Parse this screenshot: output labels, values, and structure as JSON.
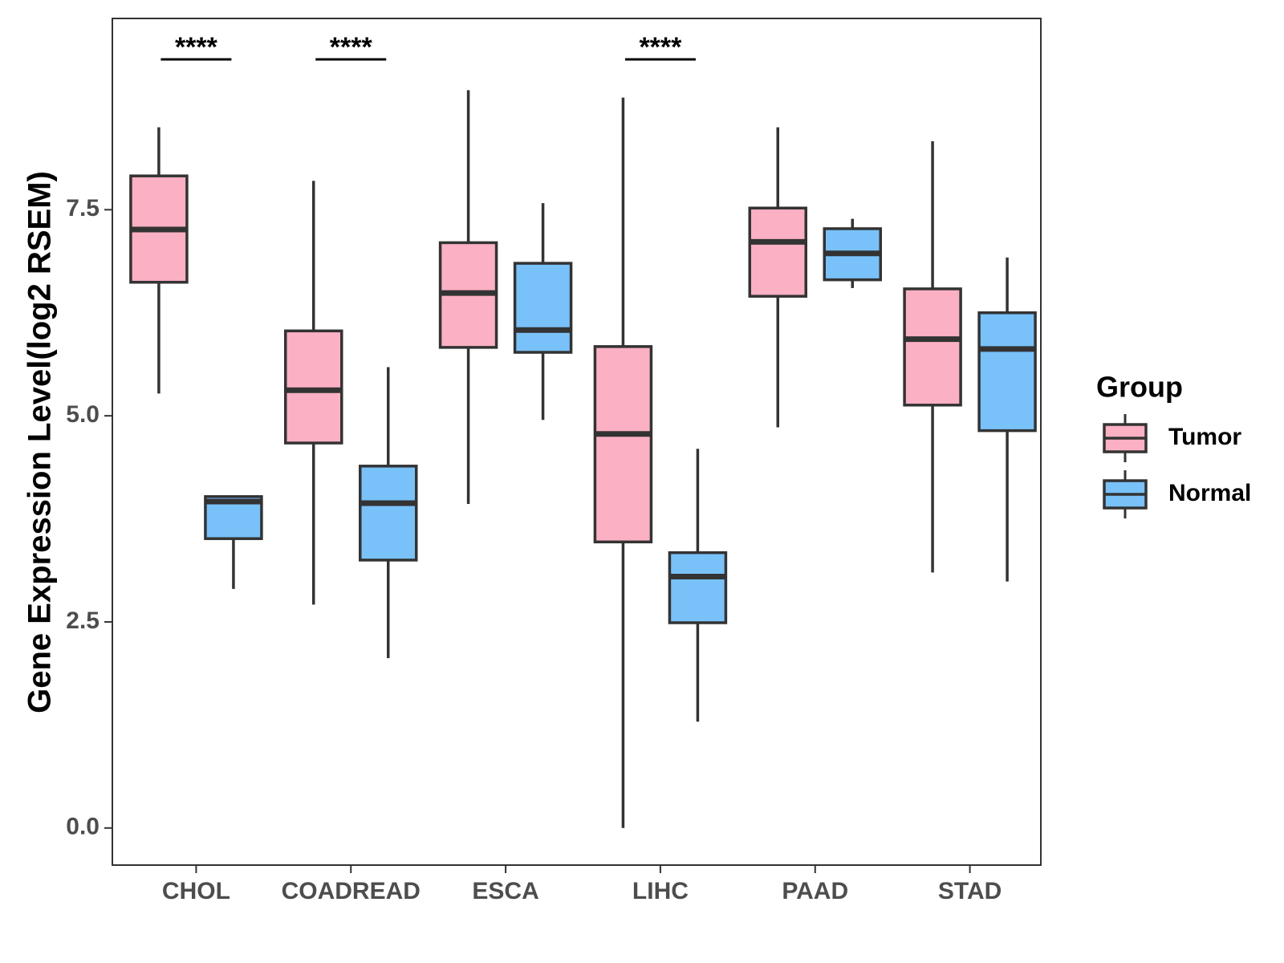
{
  "chart_data": {
    "type": "boxplot",
    "title": "",
    "xlabel": "",
    "ylabel": "Gene Expression Level(log2 RSEM)",
    "ylim": [
      -0.45,
      9.82
    ],
    "yticks": [
      0.0,
      2.5,
      5.0,
      7.5
    ],
    "ytick_labels": [
      "0.0",
      "2.5",
      "5.0",
      "7.5"
    ],
    "categories": [
      "CHOL",
      "COADREAD",
      "ESCA",
      "LIHC",
      "PAAD",
      "STAD"
    ],
    "legend": {
      "title": "Group",
      "position": "right",
      "entries": [
        "Tumor",
        "Normal"
      ]
    },
    "series": [
      {
        "name": "Tumor",
        "color": "#FBB0C3",
        "boxes": [
          {
            "category": "CHOL",
            "min": 5.27,
            "q1": 6.62,
            "median": 7.26,
            "q3": 7.91,
            "max": 8.5
          },
          {
            "category": "COADREAD",
            "min": 2.71,
            "q1": 4.67,
            "median": 5.31,
            "q3": 6.03,
            "max": 7.85
          },
          {
            "category": "ESCA",
            "min": 3.93,
            "q1": 5.83,
            "median": 6.49,
            "q3": 7.1,
            "max": 8.95
          },
          {
            "category": "LIHC",
            "min": 0.0,
            "q1": 3.47,
            "median": 4.78,
            "q3": 5.84,
            "max": 8.86
          },
          {
            "category": "PAAD",
            "min": 4.86,
            "q1": 6.45,
            "median": 7.11,
            "q3": 7.52,
            "max": 8.5
          },
          {
            "category": "STAD",
            "min": 3.1,
            "q1": 5.13,
            "median": 5.93,
            "q3": 6.54,
            "max": 8.33
          }
        ]
      },
      {
        "name": "Normal",
        "color": "#78C1F9",
        "boxes": [
          {
            "category": "CHOL",
            "min": 2.9,
            "q1": 3.51,
            "median": 3.96,
            "q3": 4.02,
            "max": 4.02
          },
          {
            "category": "COADREAD",
            "min": 2.06,
            "q1": 3.25,
            "median": 3.94,
            "q3": 4.39,
            "max": 5.59
          },
          {
            "category": "ESCA",
            "min": 4.95,
            "q1": 5.77,
            "median": 6.04,
            "q3": 6.85,
            "max": 7.58
          },
          {
            "category": "LIHC",
            "min": 1.29,
            "q1": 2.49,
            "median": 3.05,
            "q3": 3.34,
            "max": 4.6
          },
          {
            "category": "PAAD",
            "min": 6.55,
            "q1": 6.65,
            "median": 6.97,
            "q3": 7.27,
            "max": 7.39
          },
          {
            "category": "STAD",
            "min": 2.99,
            "q1": 4.82,
            "median": 5.81,
            "q3": 6.25,
            "max": 6.92
          }
        ]
      }
    ],
    "annotations": [
      {
        "category": "CHOL",
        "text": "****"
      },
      {
        "category": "COADREAD",
        "text": "****"
      },
      {
        "category": "LIHC",
        "text": "****"
      }
    ]
  }
}
